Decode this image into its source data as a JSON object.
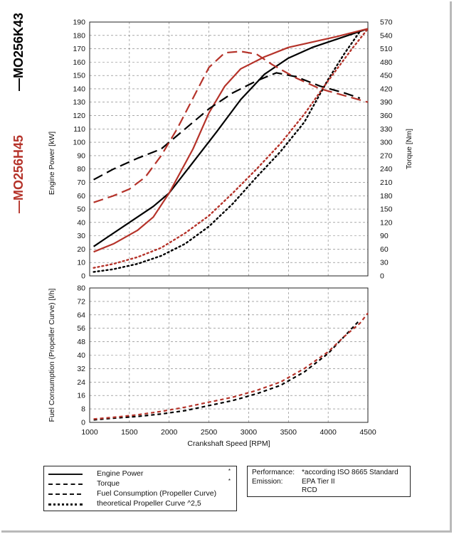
{
  "model_labels": {
    "black": "—MO256K43",
    "red": "—MO256H45"
  },
  "colors": {
    "black_engine": "#000000",
    "red_engine": "#b5332a",
    "grid": "#777777"
  },
  "legend": {
    "items": [
      {
        "label": "Engine Power",
        "style": "solid",
        "star": "*"
      },
      {
        "label": "Torque",
        "style": "dash",
        "star": "*"
      },
      {
        "label": "Fuel Consumption (Propeller Curve)",
        "style": "short-dash",
        "star": ""
      },
      {
        "label": "theoretical Propeller Curve ^2,5",
        "style": "dot",
        "star": ""
      }
    ]
  },
  "info": {
    "performance_label": "Performance:",
    "performance_value": "*according ISO 8665 Standard",
    "emission_label": "Emission:",
    "emission_value": "EPA Tier II",
    "emission_value2": "RCD"
  },
  "chart_data": [
    {
      "type": "line",
      "xlabel": "",
      "ylabel": "Engine Power [kW]",
      "y2label": "Torque [Nm]",
      "xlim": [
        1000,
        4500
      ],
      "ylim": [
        0,
        190
      ],
      "y2lim": [
        0,
        570
      ],
      "yticks": [
        "0",
        "10",
        "20",
        "30",
        "40",
        "50",
        "60",
        "70",
        "80",
        "90",
        "100",
        "110",
        "120",
        "130",
        "140",
        "150",
        "160",
        "170",
        "180",
        "190"
      ],
      "y2ticks": [
        "0",
        "30",
        "60",
        "90",
        "120",
        "150",
        "180",
        "210",
        "240",
        "270",
        "300",
        "330",
        "360",
        "390",
        "420",
        "450",
        "480",
        "510",
        "540",
        "570"
      ],
      "grid": true,
      "series": [
        {
          "name": "MO256K43 Engine Power",
          "axis": "left",
          "style": "solid",
          "color": "black",
          "x": [
            1050,
            1200,
            1500,
            1800,
            2000,
            2300,
            2600,
            2900,
            3200,
            3500,
            3800,
            4000,
            4200,
            4500
          ],
          "y": [
            22,
            28,
            40,
            52,
            62,
            85,
            108,
            132,
            151,
            163,
            171,
            175,
            179,
            185
          ]
        },
        {
          "name": "MO256H45 Engine Power",
          "axis": "left",
          "style": "solid",
          "color": "red",
          "x": [
            1050,
            1300,
            1600,
            1800,
            2000,
            2300,
            2500,
            2700,
            2900,
            3200,
            3500,
            3800,
            4100,
            4500
          ],
          "y": [
            18,
            24,
            34,
            44,
            62,
            95,
            122,
            142,
            155,
            164,
            171,
            175,
            179,
            185
          ]
        },
        {
          "name": "MO256K43 Torque",
          "axis": "right",
          "style": "dash",
          "color": "black",
          "x": [
            1050,
            1300,
            1600,
            1900,
            2200,
            2500,
            2800,
            3100,
            3350,
            3600,
            3900,
            4200,
            4400
          ],
          "y": [
            216,
            240,
            264,
            285,
            330,
            375,
            411,
            438,
            456,
            447,
            426,
            411,
            399
          ]
        },
        {
          "name": "MO256H45 Torque",
          "axis": "right",
          "style": "dash",
          "color": "red",
          "x": [
            1050,
            1300,
            1500,
            1700,
            1900,
            2100,
            2300,
            2500,
            2700,
            2900,
            3100,
            3300,
            3600,
            3900,
            4200,
            4500
          ],
          "y": [
            165,
            180,
            195,
            222,
            270,
            330,
            399,
            468,
            501,
            504,
            498,
            474,
            444,
            420,
            405,
            390
          ]
        },
        {
          "name": "MO256K43 theoretical Propeller Curve ^2,5",
          "axis": "right",
          "style": "dot",
          "color": "black",
          "x": [
            1050,
            1300,
            1600,
            1900,
            2200,
            2500,
            2800,
            3100,
            3400,
            3700,
            4000,
            4200,
            4400
          ],
          "y": [
            9,
            15,
            27,
            45,
            72,
            111,
            162,
            222,
            279,
            345,
            441,
            498,
            549
          ]
        },
        {
          "name": "MO256H45 theoretical Propeller Curve ^2,5",
          "axis": "right",
          "style": "dot",
          "color": "red",
          "x": [
            1050,
            1300,
            1600,
            1900,
            2200,
            2500,
            2800,
            3100,
            3400,
            3700,
            4000,
            4300,
            4500
          ],
          "y": [
            18,
            27,
            42,
            63,
            96,
            135,
            186,
            240,
            297,
            363,
            438,
            510,
            555
          ]
        }
      ]
    },
    {
      "type": "line",
      "xlabel": "Crankshaft Speed [RPM]",
      "ylabel": "Fuel Consumption (Propeller Curve) [l/h]",
      "xlim": [
        1000,
        4500
      ],
      "ylim": [
        0,
        80
      ],
      "xticks": [
        "1000",
        "1500",
        "2000",
        "2500",
        "3000",
        "3500",
        "4000",
        "4500"
      ],
      "yticks": [
        "0",
        "8",
        "16",
        "24",
        "32",
        "40",
        "48",
        "56",
        "64",
        "72",
        "80"
      ],
      "grid": true,
      "series": [
        {
          "name": "MO256K43 Fuel Consumption (Propeller Curve)",
          "style": "short-dash",
          "color": "black",
          "x": [
            1050,
            1300,
            1600,
            1900,
            2200,
            2500,
            2800,
            3100,
            3400,
            3700,
            4000,
            4200,
            4400
          ],
          "y": [
            1.5,
            2.5,
            3.5,
            5,
            7,
            10,
            13,
            17,
            22,
            30,
            41,
            51,
            61
          ]
        },
        {
          "name": "MO256H45 Fuel Consumption (Propeller Curve)",
          "style": "short-dash",
          "color": "red",
          "x": [
            1050,
            1300,
            1600,
            1900,
            2200,
            2500,
            2800,
            3100,
            3400,
            3700,
            4000,
            4200,
            4400,
            4500
          ],
          "y": [
            2,
            3,
            4.5,
            6.5,
            9,
            12,
            15,
            19,
            24,
            32,
            42,
            51,
            59,
            65
          ]
        }
      ]
    }
  ]
}
